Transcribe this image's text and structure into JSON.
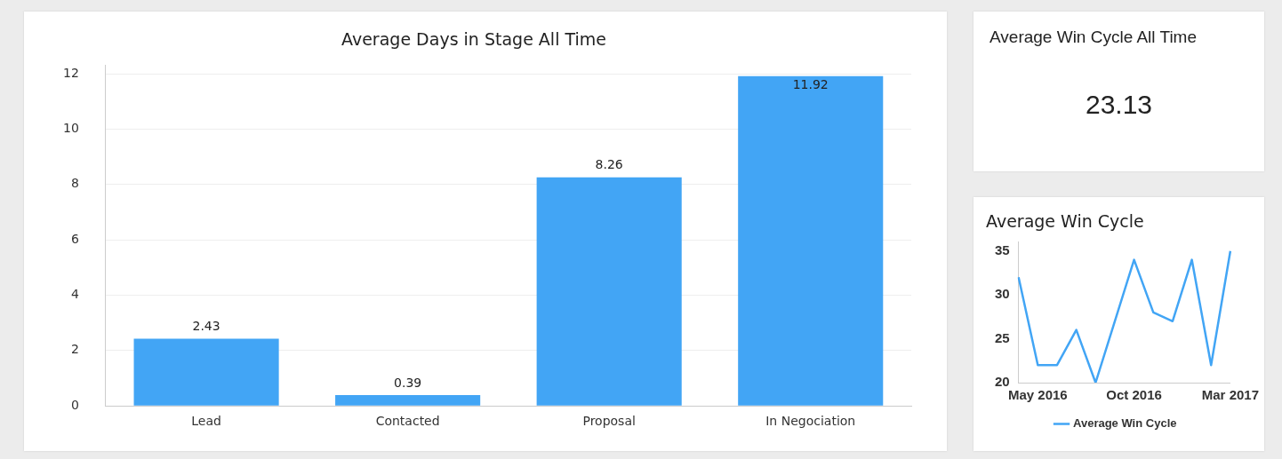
{
  "chart_data": [
    {
      "type": "bar",
      "title": "Average Days in Stage All Time",
      "categories": [
        "Lead",
        "Contacted",
        "Proposal",
        "In Negociation"
      ],
      "values": [
        2.43,
        0.39,
        8.26,
        11.92
      ],
      "color": "#42a5f5",
      "ylim": [
        0,
        12.3
      ],
      "yticks": [
        0,
        2,
        4,
        6,
        8,
        10,
        12
      ],
      "grid": "y",
      "data_labels": true
    },
    {
      "type": "other",
      "title": "Average Win Cycle All Time",
      "annotations": [
        "23.13"
      ]
    },
    {
      "type": "line",
      "title": "Average Win Cycle",
      "categories": [
        null,
        "May 2016",
        null,
        null,
        null,
        null,
        "Oct 2016",
        null,
        null,
        null,
        null,
        "Mar 2017"
      ],
      "series": [
        {
          "name": "Average Win Cycle",
          "color": "#42a5f5",
          "values": [
            32,
            22,
            22,
            26,
            20,
            27,
            34,
            28,
            27,
            34,
            22,
            35
          ]
        }
      ],
      "ylim": [
        20,
        36
      ],
      "yticks": [
        20,
        25,
        30,
        35
      ],
      "grid": false,
      "legend": "bottom",
      "marker": "none",
      "line_style": "solid"
    }
  ]
}
